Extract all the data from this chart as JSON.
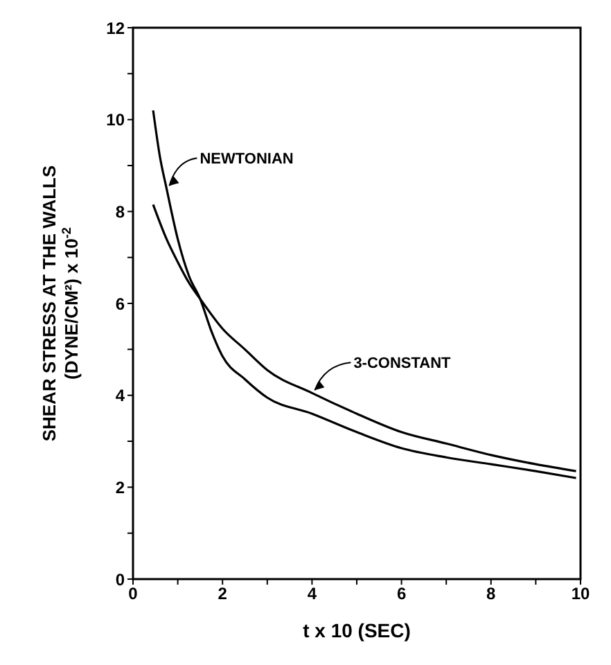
{
  "chart_data": {
    "type": "line",
    "xlabel": "t x 10 (SEC)",
    "ylabel": "SHEAR STRESS AT THE WALLS\n(DYNE/CM²) x 10$^{-2}$",
    "xlim": [
      0,
      10
    ],
    "xticks": [
      0,
      {
        "value": 1,
        "label": null
      },
      2,
      {
        "value": 3,
        "label": null
      },
      4,
      {
        "value": 5,
        "label": null
      },
      6,
      {
        "value": 7,
        "label": null
      },
      8,
      {
        "value": 9,
        "label": null
      },
      10
    ],
    "ylim": [
      0,
      12
    ],
    "yticks": [
      0,
      {
        "value": 1,
        "label": null
      },
      2,
      {
        "value": 3,
        "label": null
      },
      4,
      {
        "value": 5,
        "label": null
      },
      6,
      {
        "value": 7,
        "label": null
      },
      8,
      {
        "value": 9,
        "label": null
      },
      10,
      {
        "value": 11,
        "label": null
      },
      12
    ],
    "grid": false,
    "marker": "none",
    "line_style": "solid",
    "series": [
      {
        "name": "NEWTONIAN",
        "color": "#000000",
        "x": [
          0.45,
          0.6,
          0.75,
          1.0,
          1.25,
          1.5,
          1.75,
          2,
          2.5,
          3,
          4,
          5,
          6,
          7,
          8,
          9,
          9.9
        ],
        "values": [
          10.2,
          9.2,
          8.5,
          7.4,
          6.6,
          6.1,
          5.4,
          4.85,
          4.35,
          3.95,
          3.6,
          3.2,
          2.85,
          2.65,
          2.5,
          2.35,
          2.2
        ]
      },
      {
        "name": "3-CONSTANT",
        "color": "#000000",
        "x": [
          0.45,
          0.75,
          1.0,
          1.25,
          1.5,
          2,
          2.5,
          3,
          4,
          5,
          6,
          7,
          8,
          9,
          9.9
        ],
        "values": [
          8.15,
          7.4,
          6.9,
          6.45,
          6.1,
          5.45,
          5.0,
          4.55,
          4.05,
          3.6,
          3.2,
          2.95,
          2.7,
          2.5,
          2.35
        ]
      }
    ]
  }
}
